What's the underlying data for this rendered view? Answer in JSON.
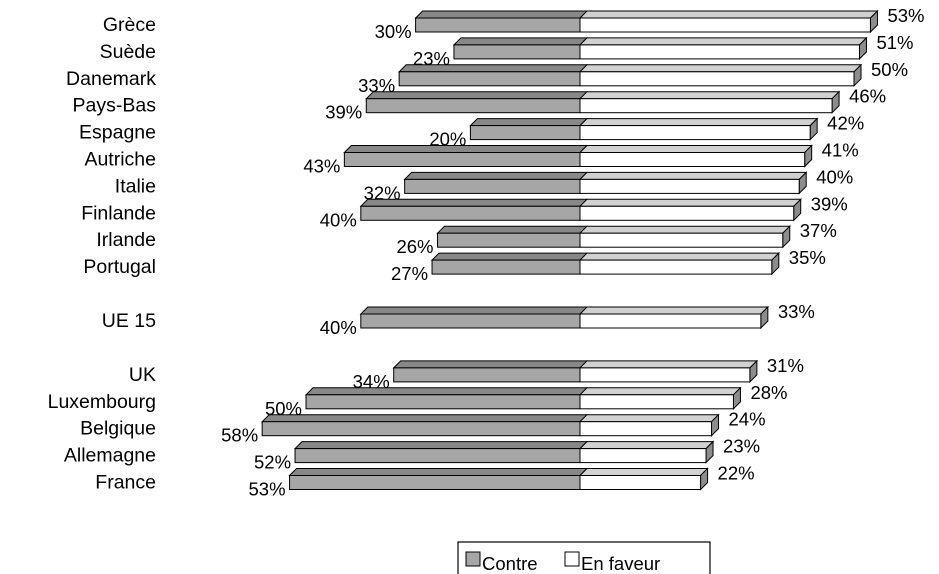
{
  "chart_data": {
    "type": "bar",
    "orientation": "horizontal-diverging",
    "style": "3d",
    "categories": [
      "Grèce",
      "Suède",
      "Danemark",
      "Pays-Bas",
      "Espagne",
      "Autriche",
      "Italie",
      "Finlande",
      "Irlande",
      "Portugal",
      "UE 15",
      "UK",
      "Luxembourg",
      "Belgique",
      "Allemagne",
      "France"
    ],
    "groups": [
      [
        0,
        1,
        2,
        3,
        4,
        5,
        6,
        7,
        8,
        9
      ],
      [
        10
      ],
      [
        11,
        12,
        13,
        14,
        15
      ]
    ],
    "series": [
      {
        "name": "Contre",
        "color": "#a6a6a6",
        "values": [
          30,
          23,
          33,
          39,
          20,
          43,
          32,
          40,
          26,
          27,
          40,
          34,
          50,
          58,
          52,
          53
        ],
        "labels": [
          "30%",
          "23%",
          "33%",
          "39%",
          "20%",
          "43%",
          "32%",
          "40%",
          "26%",
          "27%",
          "40%",
          "34%",
          "50%",
          "58%",
          "52%",
          "53%"
        ]
      },
      {
        "name": "En faveur",
        "color": "#ffffff",
        "values": [
          53,
          51,
          50,
          46,
          42,
          41,
          40,
          39,
          37,
          35,
          33,
          31,
          28,
          24,
          23,
          22
        ],
        "labels": [
          "53%",
          "51%",
          "50%",
          "46%",
          "42%",
          "41%",
          "40%",
          "39%",
          "37%",
          "35%",
          "33%",
          "31%",
          "28%",
          "24%",
          "23%",
          "22%"
        ]
      }
    ],
    "legend_position": "bottom",
    "grid": false
  }
}
